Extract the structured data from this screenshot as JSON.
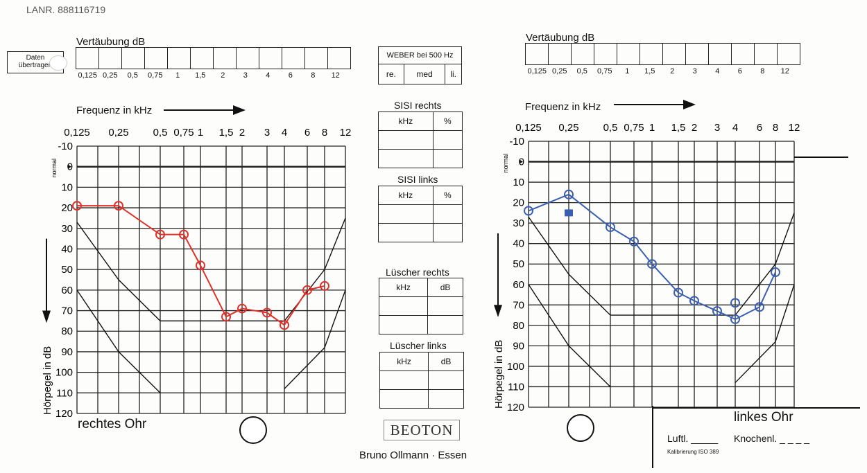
{
  "header": {
    "lanr": "LANR. 888116719",
    "scribble": ""
  },
  "daten_button": {
    "label": "Daten übertragen"
  },
  "vertaeubung": {
    "title": "Vertäubung dB",
    "freqs": [
      "0,125",
      "0,25",
      "0,5",
      "0,75",
      "1",
      "1,5",
      "2",
      "3",
      "4",
      "6",
      "8",
      "12"
    ]
  },
  "weber": {
    "title": "WEBER bei 500 Hz",
    "cols": [
      "re.",
      "med",
      "li."
    ]
  },
  "sisi_rechts": {
    "title": "SISI rechts",
    "cols": [
      "kHz",
      "%"
    ]
  },
  "sisi_links": {
    "title": "SISI links",
    "cols": [
      "kHz",
      "%"
    ]
  },
  "luescher_rechts": {
    "title": "Lüscher rechts",
    "cols": [
      "kHz",
      "dB"
    ]
  },
  "luescher_links": {
    "title": "Lüscher links",
    "cols": [
      "kHz",
      "dB"
    ]
  },
  "freq_label": "Frequenz in kHz",
  "normal_label": "normal",
  "footer": {
    "brand": "BEOTON",
    "maker": "Bruno Ollmann · Essen",
    "luftl": "Luftl.",
    "knochenl": "Knochenl.",
    "kalib": "Kalibrierung ISO 389"
  },
  "chart_data": [
    {
      "type": "line",
      "title": "rechtes Ohr",
      "xlabel": "Frequenz in kHz",
      "ylabel": "Hörpegel in dB",
      "x_tick_labels": [
        "0,125",
        "0,25",
        "0,5",
        "0,75",
        "1",
        "1,5",
        "2",
        "3",
        "4",
        "6",
        "8",
        "12"
      ],
      "y_tick_labels": [
        "-10",
        "0",
        "10",
        "20",
        "30",
        "40",
        "50",
        "60",
        "70",
        "80",
        "90",
        "100",
        "110",
        "120"
      ],
      "ylim": [
        -10,
        120
      ],
      "y_inverted": true,
      "color": "#e0302a",
      "series": [
        {
          "x": [
            0.125,
            0.25,
            0.5,
            0.75,
            1,
            1.5,
            2,
            3,
            4,
            6,
            8
          ],
          "values": [
            19,
            19,
            33,
            33,
            48,
            73,
            69,
            71,
            77,
            60,
            58
          ]
        }
      ]
    },
    {
      "type": "line",
      "title": "linkes Ohr",
      "xlabel": "Frequenz in kHz",
      "ylabel": "Hörpegel in dB",
      "x_tick_labels": [
        "0,125",
        "0,25",
        "0,5",
        "0,75",
        "1",
        "1,5",
        "2",
        "3",
        "4",
        "6",
        "8",
        "12"
      ],
      "y_tick_labels": [
        "-10",
        "0",
        "10",
        "20",
        "30",
        "40",
        "50",
        "60",
        "70",
        "80",
        "90",
        "100",
        "110",
        "120"
      ],
      "ylim": [
        -10,
        120
      ],
      "y_inverted": true,
      "color": "#3a5fb0",
      "series": [
        {
          "x": [
            0.125,
            0.25,
            0.5,
            0.75,
            1,
            1.5,
            2,
            3,
            4,
            6,
            8
          ],
          "values": [
            24,
            16,
            32,
            39,
            50,
            64,
            68,
            73,
            77,
            71,
            54
          ]
        },
        {
          "x": [
            4
          ],
          "values": [
            69
          ]
        },
        {
          "x": [
            0.25
          ],
          "values": [
            25
          ]
        }
      ]
    }
  ]
}
